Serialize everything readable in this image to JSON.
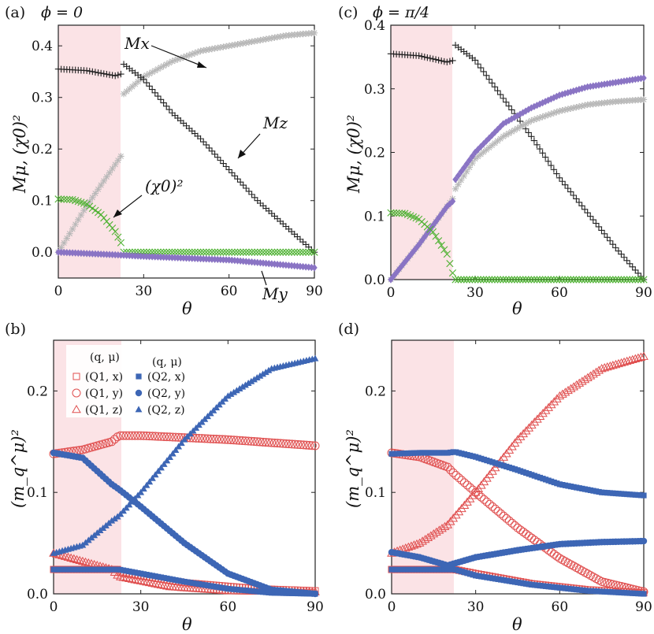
{
  "figure": {
    "panels": [
      {
        "label": "(a)",
        "title": "ϕ = 0",
        "xlabel": "θ",
        "ylabel": "Mμ, (χ0)²"
      },
      {
        "label": "(c)",
        "title": "ϕ = π/4",
        "xlabel": "θ",
        "ylabel": "Mμ, (χ0)²"
      },
      {
        "label": "(b)",
        "title": "",
        "xlabel": "θ",
        "ylabel": "(m_q^μ)²"
      },
      {
        "label": "(d)",
        "title": "",
        "xlabel": "θ",
        "ylabel": "(m_q^μ)²"
      }
    ],
    "annotations_a": {
      "mx": "Mx",
      "mz": "Mz",
      "chi": "(χ0)²",
      "my": "My"
    },
    "legend_b": {
      "header1": "(q, μ)",
      "header2": "(q, μ)",
      "entries": [
        "(Q1, x)",
        "(Q1, y)",
        "(Q1, z)",
        "(Q2, x)",
        "(Q2, y)",
        "(Q2, z)"
      ]
    }
  },
  "chart_data": [
    {
      "type": "scatter",
      "panel": "(a)",
      "title": "ϕ = 0",
      "xlabel": "θ",
      "ylabel": "Mμ, (χ0)²",
      "xlim": [
        0,
        90
      ],
      "ylim": [
        -0.05,
        0.44
      ],
      "xticks": [
        0,
        30,
        60,
        90
      ],
      "yticks": [
        0.0,
        0.1,
        0.2,
        0.3,
        0.4
      ],
      "shaded_region": [
        0,
        22.5
      ],
      "series": [
        {
          "name": "Mx",
          "color": "#b8b8b8",
          "marker": "star",
          "points": [
            [
              0,
              0.0
            ],
            [
              10,
              0.09
            ],
            [
              20,
              0.17
            ],
            [
              22.5,
              0.19
            ],
            [
              22.6,
              0.305
            ],
            [
              30,
              0.34
            ],
            [
              40,
              0.37
            ],
            [
              50,
              0.39
            ],
            [
              60,
              0.4
            ],
            [
              70,
              0.41
            ],
            [
              80,
              0.42
            ],
            [
              90,
              0.425
            ]
          ]
        },
        {
          "name": "Mz",
          "color": "#222222",
          "marker": "plus",
          "points": [
            [
              0,
              0.355
            ],
            [
              10,
              0.352
            ],
            [
              20,
              0.342
            ],
            [
              22.5,
              0.346
            ],
            [
              22.6,
              0.366
            ],
            [
              30,
              0.335
            ],
            [
              40,
              0.27
            ],
            [
              50,
              0.22
            ],
            [
              60,
              0.16
            ],
            [
              70,
              0.1
            ],
            [
              80,
              0.05
            ],
            [
              90,
              0.0
            ]
          ]
        },
        {
          "name": "(χ0)²",
          "color": "#4fb233",
          "marker": "x",
          "points": [
            [
              0,
              0.103
            ],
            [
              5,
              0.102
            ],
            [
              10,
              0.093
            ],
            [
              15,
              0.073
            ],
            [
              20,
              0.04
            ],
            [
              22.5,
              0.013
            ],
            [
              23,
              0.0
            ],
            [
              90,
              0.0
            ]
          ]
        },
        {
          "name": "My",
          "color": "#8a74c4",
          "marker": "diamond",
          "points": [
            [
              0,
              0.0
            ],
            [
              20,
              -0.005
            ],
            [
              30,
              -0.008
            ],
            [
              60,
              -0.015
            ],
            [
              90,
              -0.03
            ]
          ]
        }
      ]
    },
    {
      "type": "scatter",
      "panel": "(c)",
      "title": "ϕ = π/4",
      "xlabel": "θ",
      "ylabel": "Mμ, (χ0)²",
      "xlim": [
        0,
        90
      ],
      "ylim": [
        0.0,
        0.4
      ],
      "xticks": [
        0,
        30,
        60,
        90
      ],
      "yticks": [
        0.0,
        0.1,
        0.2,
        0.3,
        0.4
      ],
      "shaded_region": [
        0,
        22.5
      ],
      "series": [
        {
          "name": "",
          "color": "#222222",
          "marker": "plus",
          "points": [
            [
              0,
              0.355
            ],
            [
              10,
              0.352
            ],
            [
              20,
              0.342
            ],
            [
              22.5,
              0.345
            ],
            [
              22.6,
              0.37
            ],
            [
              30,
              0.345
            ],
            [
              40,
              0.285
            ],
            [
              50,
              0.225
            ],
            [
              60,
              0.16
            ],
            [
              70,
              0.105
            ],
            [
              80,
              0.05
            ],
            [
              90,
              0.0
            ]
          ]
        },
        {
          "name": "",
          "color": "#b8b8b8",
          "marker": "star",
          "points": [
            [
              0,
              0.0
            ],
            [
              10,
              0.055
            ],
            [
              20,
              0.115
            ],
            [
              22.5,
              0.13
            ],
            [
              22.6,
              0.14
            ],
            [
              30,
              0.19
            ],
            [
              40,
              0.225
            ],
            [
              50,
              0.25
            ],
            [
              60,
              0.265
            ],
            [
              70,
              0.275
            ],
            [
              80,
              0.28
            ],
            [
              90,
              0.283
            ]
          ]
        },
        {
          "name": "",
          "color": "#8a74c4",
          "marker": "diamond",
          "points": [
            [
              0,
              0.0
            ],
            [
              10,
              0.055
            ],
            [
              20,
              0.115
            ],
            [
              22.5,
              0.125
            ],
            [
              22.6,
              0.155
            ],
            [
              30,
              0.2
            ],
            [
              40,
              0.245
            ],
            [
              50,
              0.27
            ],
            [
              60,
              0.29
            ],
            [
              70,
              0.303
            ],
            [
              80,
              0.31
            ],
            [
              90,
              0.317
            ]
          ]
        },
        {
          "name": "",
          "color": "#4fb233",
          "marker": "x",
          "points": [
            [
              0,
              0.105
            ],
            [
              5,
              0.104
            ],
            [
              10,
              0.095
            ],
            [
              15,
              0.075
            ],
            [
              20,
              0.04
            ],
            [
              22.5,
              0.003
            ],
            [
              23,
              0.0
            ],
            [
              90,
              0.0
            ]
          ]
        }
      ]
    },
    {
      "type": "scatter",
      "panel": "(b)",
      "xlabel": "θ",
      "ylabel": "(m_q^μ)²",
      "xlim": [
        0,
        90
      ],
      "ylim": [
        0.0,
        0.25
      ],
      "xticks": [
        0,
        30,
        60,
        90
      ],
      "yticks": [
        0.0,
        0.1,
        0.2
      ],
      "shaded_region": [
        0,
        22.5
      ],
      "series": [
        {
          "name": "(Q1, x)",
          "color": "#e05050",
          "marker": "square-open",
          "points": [
            [
              0,
              0.024
            ],
            [
              22.5,
              0.024
            ],
            [
              23,
              0.021
            ],
            [
              45,
              0.011
            ],
            [
              70,
              0.005
            ],
            [
              90,
              0.003
            ]
          ]
        },
        {
          "name": "(Q1, y)",
          "color": "#e05050",
          "marker": "circle-open",
          "points": [
            [
              0,
              0.138
            ],
            [
              10,
              0.142
            ],
            [
              20,
              0.15
            ],
            [
              22.5,
              0.156
            ],
            [
              30,
              0.156
            ],
            [
              60,
              0.152
            ],
            [
              90,
              0.146
            ]
          ]
        },
        {
          "name": "(Q1, z)",
          "color": "#e05050",
          "marker": "triangle-open",
          "points": [
            [
              0,
              0.04
            ],
            [
              10,
              0.032
            ],
            [
              20,
              0.024
            ],
            [
              22.5,
              0.017
            ],
            [
              40,
              0.007
            ],
            [
              60,
              0.003
            ],
            [
              90,
              0.002
            ]
          ]
        },
        {
          "name": "(Q2, x)",
          "color": "#3d66b5",
          "marker": "square",
          "points": [
            [
              0,
              0.024
            ],
            [
              22.5,
              0.024
            ],
            [
              30,
              0.02
            ],
            [
              45,
              0.012
            ],
            [
              60,
              0.005
            ],
            [
              75,
              0.001
            ],
            [
              90,
              0.0
            ]
          ]
        },
        {
          "name": "(Q2, y)",
          "color": "#3d66b5",
          "marker": "circle",
          "points": [
            [
              0,
              0.139
            ],
            [
              10,
              0.134
            ],
            [
              20,
              0.108
            ],
            [
              22.5,
              0.103
            ],
            [
              30,
              0.086
            ],
            [
              45,
              0.05
            ],
            [
              60,
              0.02
            ],
            [
              75,
              0.004
            ],
            [
              90,
              0.0
            ]
          ]
        },
        {
          "name": "(Q2, z)",
          "color": "#3d66b5",
          "marker": "triangle",
          "points": [
            [
              0,
              0.04
            ],
            [
              10,
              0.048
            ],
            [
              20,
              0.072
            ],
            [
              22.5,
              0.077
            ],
            [
              30,
              0.1
            ],
            [
              45,
              0.152
            ],
            [
              60,
              0.195
            ],
            [
              75,
              0.222
            ],
            [
              90,
              0.232
            ]
          ]
        }
      ]
    },
    {
      "type": "scatter",
      "panel": "(d)",
      "xlabel": "θ",
      "ylabel": "(m_q^μ)²",
      "xlim": [
        0,
        90
      ],
      "ylim": [
        0.0,
        0.25
      ],
      "xticks": [
        0,
        30,
        60,
        90
      ],
      "yticks": [
        0.0,
        0.1,
        0.2
      ],
      "shaded_region": [
        0,
        22.5
      ],
      "series": [
        {
          "name": "(Q1, x)",
          "color": "#e05050",
          "marker": "square-open",
          "points": [
            [
              0,
              0.024
            ],
            [
              22.5,
              0.024
            ],
            [
              30,
              0.02
            ],
            [
              50,
              0.01
            ],
            [
              70,
              0.004
            ],
            [
              90,
              0.001
            ]
          ]
        },
        {
          "name": "(Q1, y)",
          "color": "#e05050",
          "marker": "circle-open",
          "points": [
            [
              0,
              0.139
            ],
            [
              10,
              0.135
            ],
            [
              20,
              0.125
            ],
            [
              22.5,
              0.118
            ],
            [
              30,
              0.1
            ],
            [
              45,
              0.065
            ],
            [
              60,
              0.035
            ],
            [
              75,
              0.012
            ],
            [
              90,
              0.002
            ]
          ]
        },
        {
          "name": "(Q1, z)",
          "color": "#e05050",
          "marker": "triangle-open",
          "points": [
            [
              0,
              0.04
            ],
            [
              10,
              0.05
            ],
            [
              20,
              0.068
            ],
            [
              22.5,
              0.076
            ],
            [
              30,
              0.1
            ],
            [
              45,
              0.152
            ],
            [
              60,
              0.195
            ],
            [
              75,
              0.222
            ],
            [
              90,
              0.234
            ]
          ]
        },
        {
          "name": "(Q2, x)",
          "color": "#3d66b5",
          "marker": "square",
          "points": [
            [
              0,
              0.024
            ],
            [
              22.5,
              0.024
            ],
            [
              30,
              0.018
            ],
            [
              50,
              0.009
            ],
            [
              70,
              0.003
            ],
            [
              90,
              0.0
            ]
          ]
        },
        {
          "name": "(Q2, y)",
          "color": "#3d66b5",
          "marker": "circle",
          "points": [
            [
              0,
              0.041
            ],
            [
              10,
              0.036
            ],
            [
              20,
              0.028
            ],
            [
              22.5,
              0.03
            ],
            [
              30,
              0.036
            ],
            [
              45,
              0.043
            ],
            [
              60,
              0.049
            ],
            [
              75,
              0.051
            ],
            [
              90,
              0.052
            ]
          ]
        },
        {
          "name": "(Q2, z)",
          "color": "#3d66b5",
          "marker": "square",
          "points": [
            [
              0,
              0.138
            ],
            [
              10,
              0.139
            ],
            [
              20,
              0.139
            ],
            [
              22.5,
              0.14
            ],
            [
              30,
              0.135
            ],
            [
              45,
              0.122
            ],
            [
              60,
              0.108
            ],
            [
              75,
              0.1
            ],
            [
              90,
              0.097
            ]
          ]
        }
      ]
    }
  ]
}
